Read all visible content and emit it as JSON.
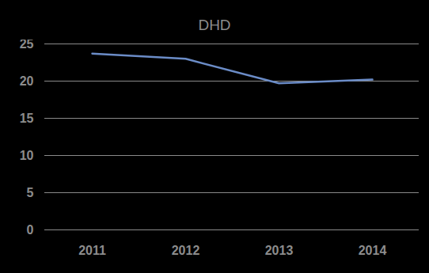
{
  "chart_data": {
    "type": "line",
    "title": "DHD",
    "categories": [
      "2011",
      "2012",
      "2013",
      "2014"
    ],
    "values": [
      23.7,
      23.0,
      19.7,
      20.2
    ],
    "color": "#6b8cc7",
    "ylim": [
      0,
      25
    ],
    "yticks": [
      0,
      5,
      10,
      15,
      20,
      25
    ],
    "grid": true
  }
}
